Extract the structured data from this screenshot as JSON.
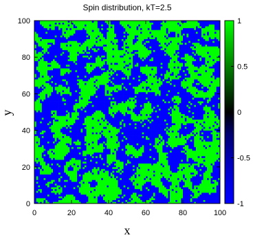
{
  "chart_data": {
    "type": "heatmap",
    "title": "Spin distribution, kT=2.5",
    "xlabel": "x",
    "ylabel": "y",
    "xlim": [
      0,
      100
    ],
    "ylim": [
      0,
      100
    ],
    "x_ticks": [
      "0",
      "20",
      "40",
      "60",
      "80",
      "100"
    ],
    "y_ticks": [
      "0",
      "20",
      "40",
      "60",
      "80",
      "100"
    ],
    "colorbar": {
      "range": [
        -1,
        1
      ],
      "ticks": [
        "1",
        "0.5",
        "0",
        "-0.5",
        "-1"
      ],
      "colors": [
        "#0000ff",
        "#000060",
        "#004000",
        "#00ff00"
      ]
    },
    "grid_size": 100,
    "values_description_seed": 25
  }
}
